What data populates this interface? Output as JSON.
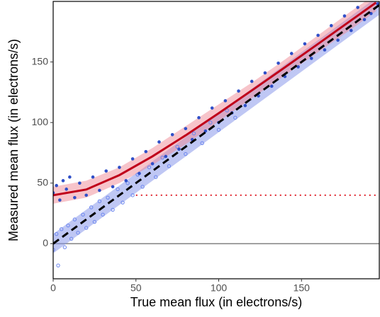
{
  "chart_data": {
    "type": "scatter",
    "x_label": "True mean flux (in electrons/s)",
    "y_label": "Measured mean flux (in electrons/s)",
    "xlim": [
      0,
      197
    ],
    "ylim": [
      -29,
      200
    ],
    "xticks": [
      0,
      50,
      100,
      150
    ],
    "yticks": [
      0,
      50,
      100,
      150
    ],
    "reference_line": 0,
    "reference_color": "#808080",
    "series": [
      {
        "kind": "band",
        "color": "#7f8fea",
        "x": [
          0,
          50,
          100,
          150,
          197
        ],
        "lower": [
          -8,
          42,
          92,
          142,
          189
        ],
        "upper": [
          8,
          58,
          108,
          158,
          205
        ]
      },
      {
        "kind": "band",
        "color": "#f08a96",
        "x": [
          0,
          20,
          40,
          60,
          80,
          100,
          120,
          140,
          160,
          180,
          195
        ],
        "lower": [
          33,
          38,
          50,
          65,
          82,
          101,
          120,
          139,
          158,
          177,
          192
        ],
        "upper": [
          47,
          52,
          63,
          79,
          97,
          115,
          133,
          152,
          172,
          192,
          206
        ]
      },
      {
        "kind": "open-points",
        "color": "#6c86ee",
        "x": [
          0,
          2,
          3,
          5,
          7,
          9,
          11,
          13,
          15,
          18,
          20,
          23,
          25,
          28,
          30,
          33,
          36,
          39,
          42,
          45,
          48,
          51,
          54,
          58,
          62,
          66,
          70,
          75,
          80,
          85,
          90,
          95,
          100,
          105,
          110
        ],
        "values": [
          -5,
          8,
          -18,
          12,
          -3,
          15,
          4,
          20,
          9,
          24,
          13,
          30,
          18,
          35,
          24,
          38,
          28,
          45,
          34,
          50,
          40,
          57,
          47,
          63,
          55,
          71,
          64,
          80,
          74,
          91,
          83,
          100,
          94,
          110,
          104
        ]
      },
      {
        "kind": "points",
        "color": "#2f4fc8",
        "x": [
          0,
          2,
          4,
          6,
          8,
          10,
          13,
          16,
          20,
          24,
          28,
          32,
          36,
          40,
          44,
          48,
          52,
          56,
          60,
          64,
          68,
          72,
          76,
          80,
          84,
          88,
          92,
          96,
          100,
          104,
          108,
          112,
          116,
          120,
          124,
          128,
          132,
          136,
          140,
          144,
          148,
          152,
          156,
          160,
          164,
          168,
          172,
          176,
          180,
          184,
          188,
          192,
          196
        ],
        "values": [
          42,
          48,
          36,
          52,
          45,
          55,
          38,
          50,
          40,
          55,
          44,
          60,
          47,
          63,
          52,
          70,
          58,
          76,
          66,
          84,
          72,
          90,
          78,
          95,
          86,
          104,
          93,
          112,
          100,
          118,
          108,
          126,
          114,
          134,
          122,
          141,
          130,
          149,
          138,
          157,
          146,
          165,
          153,
          172,
          160,
          180,
          168,
          188,
          176,
          195,
          185,
          190,
          198
        ]
      },
      {
        "kind": "line",
        "color": "#c0001a",
        "x": [
          0,
          20,
          40,
          60,
          80,
          100,
          120,
          140,
          160,
          180,
          195
        ],
        "values": [
          40,
          44.7,
          56.6,
          72.1,
          89.4,
          107.7,
          126.5,
          145.6,
          164.9,
          184.4,
          199
        ]
      },
      {
        "kind": "dashed",
        "color": "#000000",
        "x": [
          0,
          197
        ],
        "values": [
          0,
          197
        ]
      },
      {
        "kind": "dotted",
        "color": "#e0202a",
        "x": [
          50,
          197
        ],
        "values": [
          40,
          40
        ]
      }
    ]
  }
}
